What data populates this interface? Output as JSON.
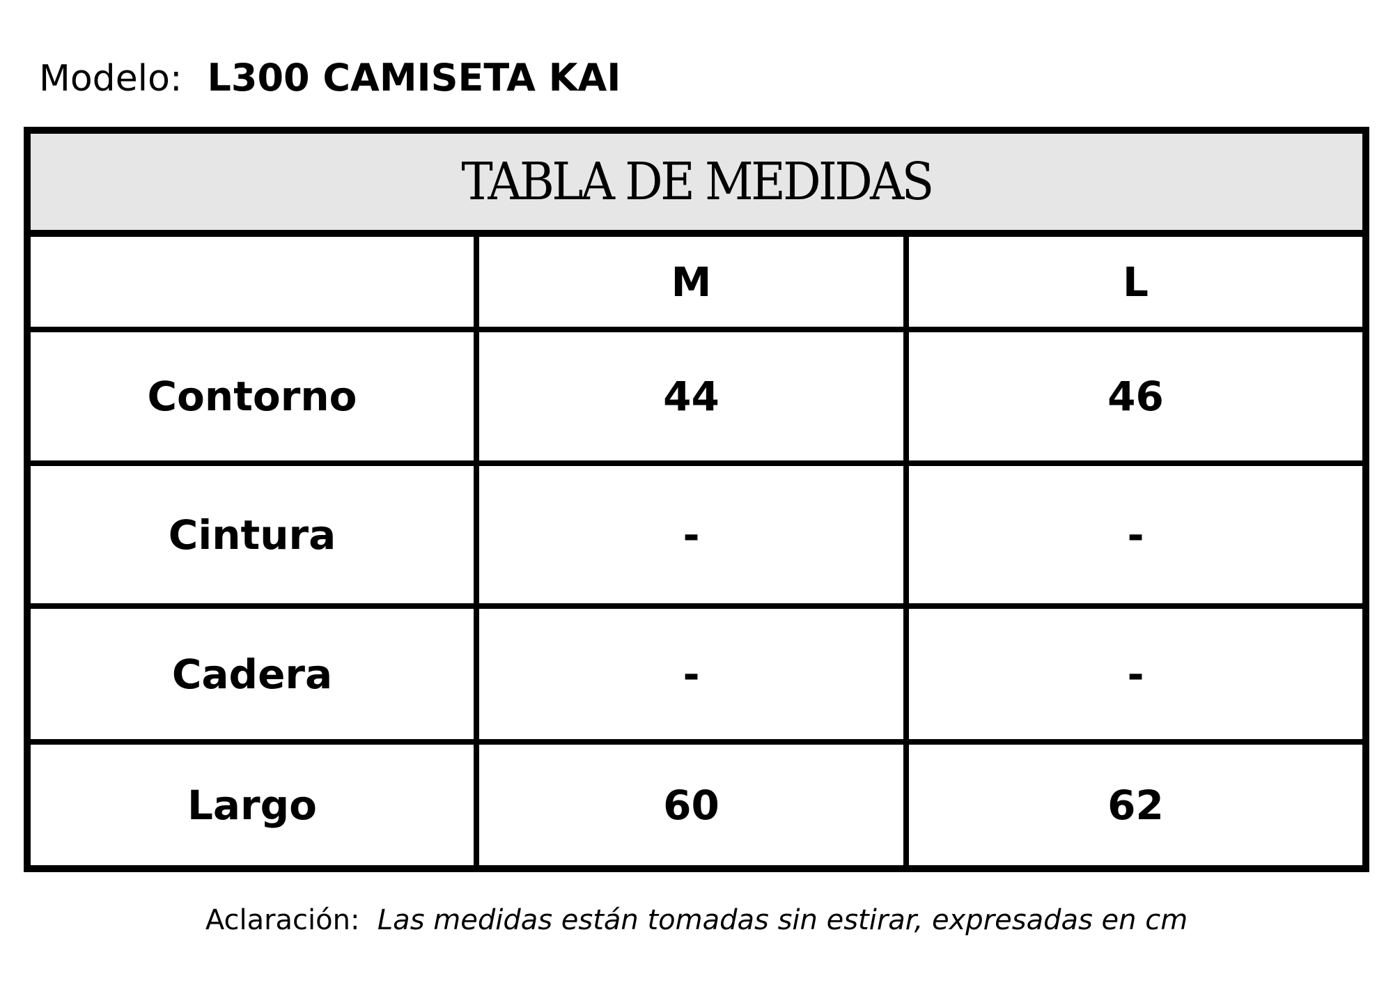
{
  "model": {
    "label": "Modelo:",
    "value": "L300 CAMISETA KAI"
  },
  "table": {
    "title": "TABLA DE MEDIDAS",
    "columns": [
      "",
      "M",
      "L"
    ],
    "rows": [
      {
        "label": "Contorno",
        "values": [
          "44",
          "46"
        ]
      },
      {
        "label": "Cintura",
        "values": [
          "-",
          "-"
        ]
      },
      {
        "label": "Cadera",
        "values": [
          "-",
          "-"
        ]
      },
      {
        "label": "Largo",
        "values": [
          "60",
          "62"
        ]
      }
    ]
  },
  "footnote": {
    "label": "Aclaración:",
    "text": "Las medidas están tomadas sin estirar, expresadas en cm"
  }
}
